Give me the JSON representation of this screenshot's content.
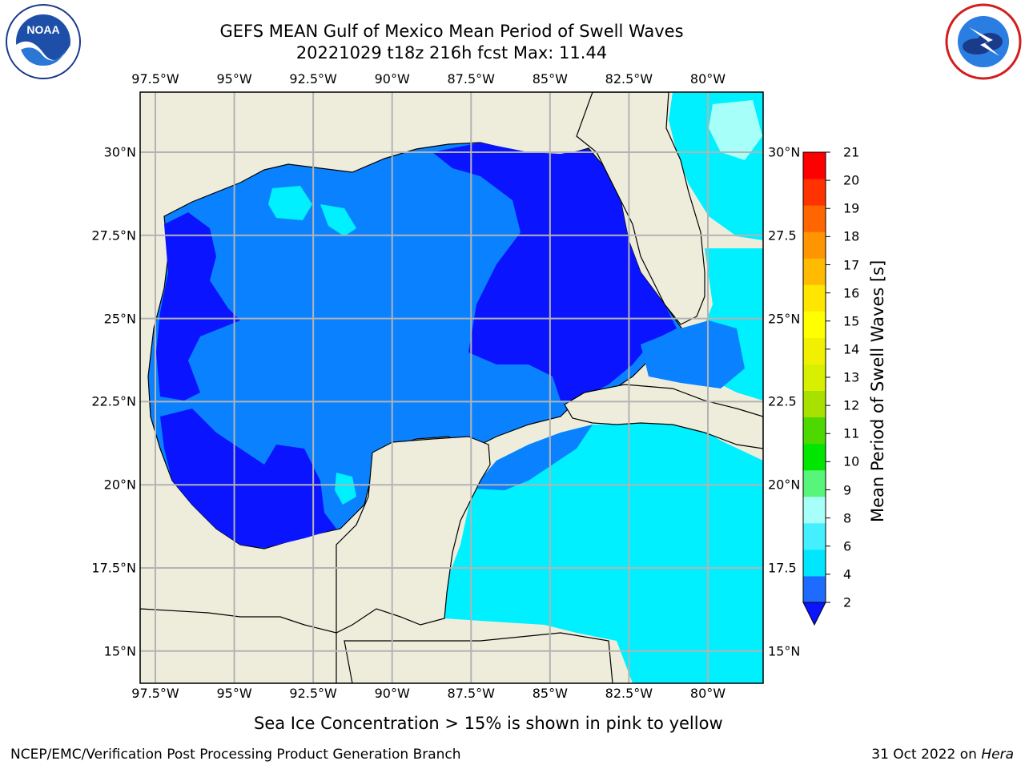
{
  "header": {
    "title_line1": "GEFS MEAN Gulf of Mexico Mean Period of Swell Waves",
    "title_line2": "20221029 t18z 216h fcst   Max: 11.44"
  },
  "logos": {
    "left": "noaa-logo",
    "right": "nws-logo"
  },
  "axes": {
    "lon_labels": [
      "97.5°W",
      "95°W",
      "92.5°W",
      "90°W",
      "87.5°W",
      "85°W",
      "82.5°W",
      "80°W"
    ],
    "lat_labels": [
      "30°N",
      "27.5°N",
      "25°N",
      "22.5°N",
      "20°N",
      "17.5°N",
      "15°N"
    ],
    "lat_labels_right": [
      "30°N",
      "27.5",
      "25°N",
      "22.5",
      "20°N",
      "17.5",
      "15°N"
    ],
    "lon_values": [
      -97.5,
      -95,
      -92.5,
      -90,
      -87.5,
      -85,
      -82.5,
      -80
    ],
    "lat_values": [
      30,
      27.5,
      25,
      22.5,
      20,
      17.5,
      15
    ],
    "grid": true
  },
  "colorbar": {
    "title": "Mean Period of Swell Waves [s]",
    "ticks": [
      "21",
      "20",
      "19",
      "18",
      "17",
      "16",
      "15",
      "14",
      "13",
      "12",
      "11",
      "10",
      "9",
      "8",
      "6",
      "4",
      "2"
    ],
    "levels": [
      2,
      4,
      6,
      8,
      9,
      10,
      11,
      12,
      13,
      14,
      15,
      16,
      17,
      18,
      19,
      20,
      21
    ],
    "colors": [
      "#1e6cff",
      "#00e6ff",
      "#44f0ff",
      "#a6fff8",
      "#57f57a",
      "#00e600",
      "#4dd800",
      "#a8e000",
      "#d8f000",
      "#f0f000",
      "#ffff00",
      "#ffe600",
      "#ffbb00",
      "#ff9500",
      "#ff6600",
      "#ff3300",
      "#ff0000"
    ],
    "extend_color": "#0a14ff"
  },
  "colors": {
    "land": "#eeeddc",
    "water_dark": "#0a14ff",
    "water_mid": "#0a82ff",
    "water_light": "#00f0ff",
    "water_pale": "#a6fff8",
    "green_light": "#57f57a",
    "green": "#00e600",
    "grid": "#b3b3b3"
  },
  "note": "Sea Ice Concentration > 15% is shown in pink to yellow",
  "footer": {
    "left": "NCEP/EMC/Verification Post Processing Product Generation Branch",
    "right_date": "31 Oct 2022 on",
    "right_host": "Hera"
  }
}
